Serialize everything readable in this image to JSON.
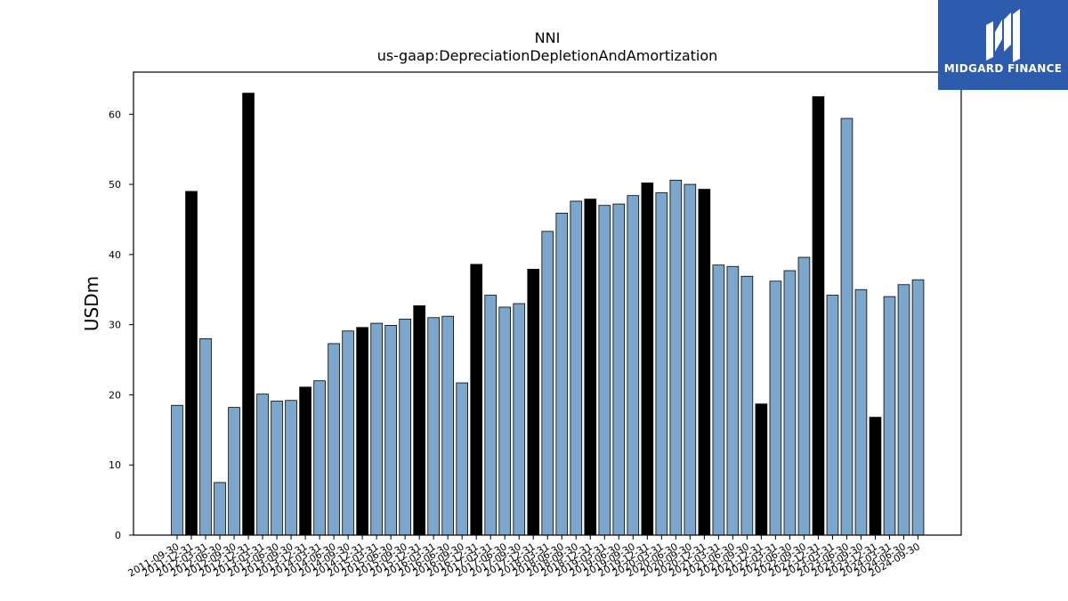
{
  "chart_data": {
    "type": "bar",
    "title": "NNI",
    "subtitle": "us-gaap:DepreciationDepletionAndAmortization",
    "xlabel": "",
    "ylabel": "USDm",
    "ylim": [
      0,
      66
    ],
    "yticks": [
      0,
      10,
      20,
      30,
      40,
      50,
      60
    ],
    "grid": false,
    "colors": {
      "quarter": "#7ba7cc",
      "annual": "#000000",
      "edge": "#000000"
    },
    "categories": [
      "2011-09-30",
      "2011-12-31",
      "2012-03-31",
      "2012-06-30",
      "2012-09-30",
      "2012-12-31",
      "2013-03-31",
      "2013-06-30",
      "2013-09-30",
      "2013-12-31",
      "2014-03-31",
      "2014-06-30",
      "2014-09-30",
      "2014-12-31",
      "2015-03-31",
      "2015-06-30",
      "2015-09-30",
      "2015-12-31",
      "2016-03-31",
      "2016-06-30",
      "2016-09-30",
      "2016-12-31",
      "2017-03-31",
      "2017-06-30",
      "2017-09-30",
      "2017-12-31",
      "2018-03-31",
      "2018-06-30",
      "2018-09-30",
      "2018-12-31",
      "2019-03-31",
      "2019-06-30",
      "2019-09-30",
      "2019-12-31",
      "2020-03-31",
      "2020-06-30",
      "2020-09-30",
      "2020-12-31",
      "2021-03-31",
      "2021-06-30",
      "2021-09-30",
      "2021-12-31",
      "2022-03-31",
      "2022-06-30",
      "2022-09-30",
      "2022-12-31",
      "2023-03-31",
      "2023-06-30",
      "2023-09-30",
      "2023-12-31",
      "2024-03-31",
      "2024-06-30",
      "2024-09-30"
    ],
    "values": [
      18.5,
      49.0,
      28.0,
      7.5,
      18.2,
      63.0,
      20.1,
      19.1,
      19.2,
      21.1,
      22.0,
      27.3,
      29.1,
      29.6,
      30.2,
      29.9,
      30.8,
      32.7,
      31.0,
      31.2,
      21.7,
      38.6,
      34.2,
      32.5,
      33.0,
      37.9,
      43.3,
      45.9,
      47.6,
      47.9,
      47.0,
      47.2,
      48.4,
      50.2,
      48.8,
      50.6,
      50.0,
      49.3,
      38.5,
      38.3,
      36.9,
      18.7,
      36.2,
      37.7,
      39.6,
      62.5,
      34.2,
      59.4,
      35.0,
      16.8,
      34.0,
      35.7,
      36.4
    ],
    "highlight": [
      false,
      true,
      false,
      false,
      false,
      true,
      false,
      false,
      false,
      true,
      false,
      false,
      false,
      true,
      false,
      false,
      false,
      true,
      false,
      false,
      false,
      true,
      false,
      false,
      false,
      true,
      false,
      false,
      false,
      true,
      false,
      false,
      false,
      true,
      false,
      false,
      false,
      true,
      false,
      false,
      false,
      true,
      false,
      false,
      false,
      true,
      false,
      false,
      false,
      true,
      false,
      false,
      false
    ]
  },
  "logo": {
    "text": "MIDGARD FINANCE",
    "background": "#2d5caf"
  }
}
